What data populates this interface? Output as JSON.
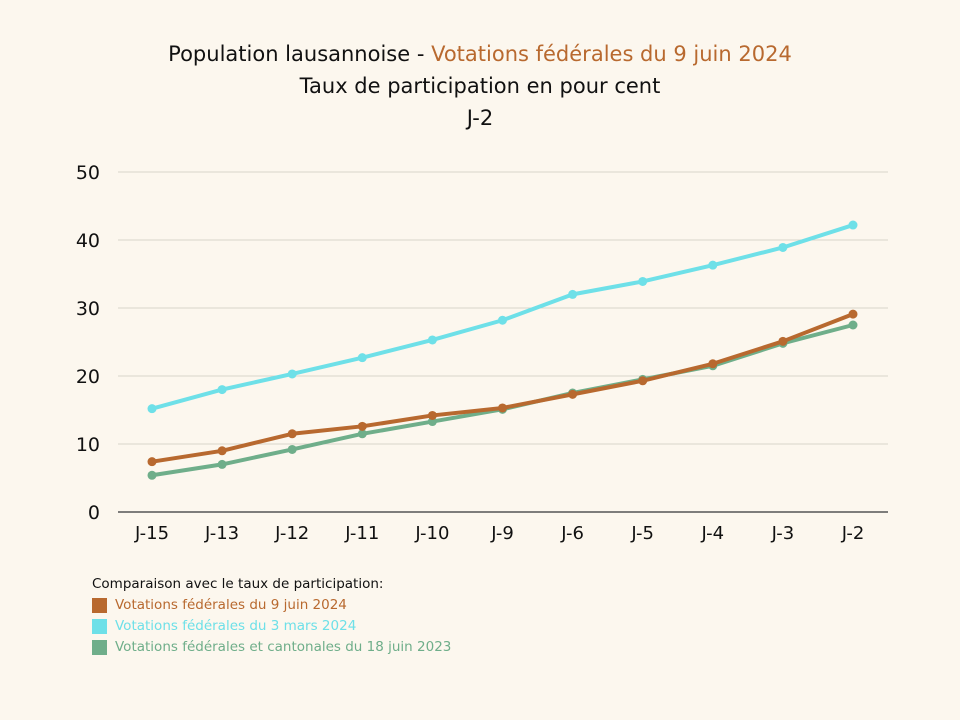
{
  "title": {
    "prefix": "Population lausannoise - ",
    "highlight": "Votations fédérales du 9 juin 2024",
    "line2": "Taux de participation en pour cent",
    "line3": "J-2"
  },
  "legend": {
    "heading": "Comparaison avec le taux de participation:"
  },
  "chart_data": {
    "type": "line",
    "categories": [
      "J-15",
      "J-13",
      "J-12",
      "J-11",
      "J-10",
      "J-9",
      "J-6",
      "J-5",
      "J-4",
      "J-3",
      "J-2"
    ],
    "ylim": [
      0,
      50
    ],
    "yticks": [
      0,
      10,
      20,
      30,
      40,
      50
    ],
    "grid": true,
    "legend_position": "bottom-left",
    "series": [
      {
        "name": "Votations fédérales du 9 juin 2024",
        "color": "#b8692f",
        "values": [
          7.4,
          9.0,
          11.5,
          12.6,
          14.2,
          15.3,
          17.3,
          19.3,
          21.8,
          25.1,
          29.1
        ]
      },
      {
        "name": "Votations fédérales du 3 mars 2024",
        "color": "#6ee0e8",
        "values": [
          15.2,
          18.0,
          20.3,
          22.7,
          25.3,
          28.2,
          32.0,
          33.9,
          36.3,
          38.9,
          42.2
        ]
      },
      {
        "name": "Votations fédérales et cantonales du 18 juin 2023",
        "color": "#6fae8a",
        "values": [
          5.4,
          7.0,
          9.2,
          11.5,
          13.3,
          15.1,
          17.5,
          19.5,
          21.5,
          24.8,
          27.5
        ]
      }
    ]
  }
}
